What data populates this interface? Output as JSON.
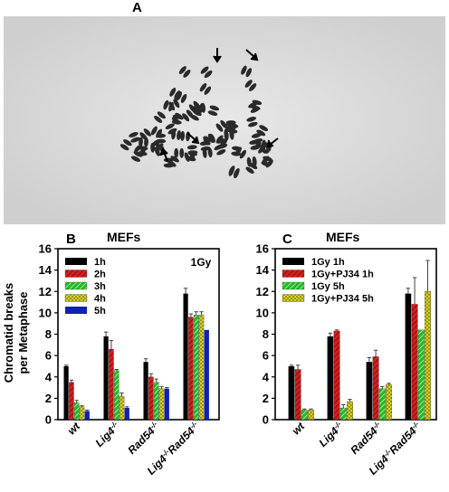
{
  "panel_a": {
    "label": "A",
    "image": "metaphase-chromosome-spread"
  },
  "y_axis_label_line1": "Chromatid breaks",
  "y_axis_label_line2": "per Metaphase",
  "chart_data": [
    {
      "panel_label": "B",
      "type": "bar",
      "title": "MEFs",
      "annotation": "1Gy",
      "categories": [
        "wt",
        "Lig4",
        "Rad54",
        "Lig4/Rad54"
      ],
      "ylim": [
        0,
        16
      ],
      "yticks": [
        0,
        2,
        4,
        6,
        8,
        10,
        12,
        14,
        16
      ],
      "legend_position": "top-left",
      "series": [
        {
          "name": "1h",
          "color": "#000000",
          "pattern": "solid",
          "values": [
            5.0,
            7.8,
            5.4,
            11.8
          ],
          "errors": [
            0.1,
            0.4,
            0.3,
            0.5
          ]
        },
        {
          "name": "2h",
          "color": "#d02020",
          "pattern": "diag",
          "values": [
            3.5,
            6.6,
            4.0,
            9.6
          ],
          "errors": [
            0.2,
            0.8,
            0.3,
            0.3
          ]
        },
        {
          "name": "3h",
          "color": "#22bb22",
          "pattern": "diag",
          "values": [
            1.6,
            4.6,
            3.5,
            9.8
          ],
          "errors": [
            0.2,
            0.1,
            0.3,
            0.3
          ]
        },
        {
          "name": "4h",
          "color": "#e8e030",
          "pattern": "cross",
          "values": [
            1.2,
            2.2,
            2.9,
            9.8
          ],
          "errors": [
            0.1,
            0.3,
            0.2,
            0.3
          ]
        },
        {
          "name": "5h",
          "color": "#1020b0",
          "pattern": "solid",
          "values": [
            0.8,
            1.1,
            2.9,
            8.4
          ],
          "errors": [
            0.1,
            0.1,
            0.1,
            0.0
          ]
        }
      ]
    },
    {
      "panel_label": "C",
      "type": "bar",
      "title": "MEFs",
      "categories": [
        "wt",
        "Lig4",
        "Rad54",
        "Lig4/Rad54"
      ],
      "ylim": [
        0,
        16
      ],
      "yticks": [
        0,
        2,
        4,
        6,
        8,
        10,
        12,
        14,
        16
      ],
      "legend_position": "top-left",
      "series": [
        {
          "name": "1Gy 1h",
          "color": "#000000",
          "pattern": "solid",
          "values": [
            5.0,
            7.8,
            5.4,
            11.8
          ],
          "errors": [
            0.1,
            0.3,
            0.4,
            0.5
          ]
        },
        {
          "name": "1Gy+PJ34 1h",
          "color": "#d02020",
          "pattern": "diag",
          "values": [
            4.7,
            8.3,
            5.9,
            10.8
          ],
          "errors": [
            0.4,
            0.1,
            0.6,
            2.5
          ]
        },
        {
          "name": "1Gy 5h",
          "color": "#22bb22",
          "pattern": "diag",
          "values": [
            0.9,
            1.1,
            2.9,
            8.4
          ],
          "errors": [
            0.1,
            0.3,
            0.2,
            0.0
          ]
        },
        {
          "name": "1Gy+PJ34 5h",
          "color": "#e8e030",
          "pattern": "cross",
          "values": [
            0.9,
            1.7,
            3.3,
            12.0
          ],
          "errors": [
            0.1,
            0.2,
            0.1,
            2.9
          ]
        }
      ]
    }
  ]
}
